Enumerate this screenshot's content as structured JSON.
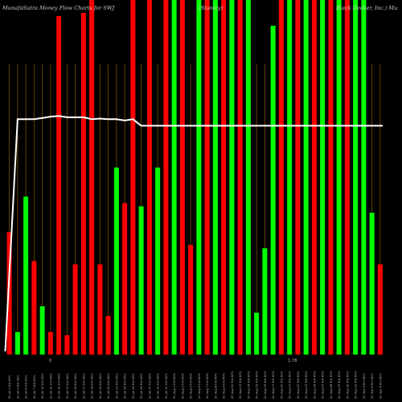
{
  "chart_data": {
    "type": "bar",
    "title": "MunafaSutra  Money Flow  Charts for SWJ",
    "title_right": "(Stanley)",
    "title_far_right": "Black  Decker,  Inc.) Mu",
    "categories": [
      "20 Jul 2 Kid 40%",
      "20 Jul 3 Kid 38%",
      "20 Jul 5 Kid 40%",
      "20 Jul 7 Kid 40%",
      "20 Jul 10 Kid 40%",
      "20 Jul 11 Kid 40%",
      "20 Jul 12 Kid 40%",
      "20 Jul 13 Kid 40%",
      "20 Jul 16 Kid 40%",
      "20 Jul 17 Kid 40%",
      "20 Jul 18 Kid 40%",
      "20 Jul 19 Kid 40%",
      "20 Jul 20 Kid 40%",
      "20 Jul 23 Kid 40%",
      "20 Jul 24 Kid 40%",
      "20 Jul 25 Kid 40%",
      "20 Jul 26 Kid 40%",
      "20 Jul 27 Kid 40%",
      "20 Jul 30 Kid 40%",
      "20 Jul 31 Kid 40%",
      "20 Aug 1 Kid 40%",
      "20 Aug 2 Kid 40%",
      "20 Aug 3 Kid 40%",
      "20 Aug 6 Kid 40%",
      "20 Aug 7 Kid 40%",
      "20 Aug 8 Kid 40%",
      "20 Aug 9 Kid 40%",
      "20 Aug 10 Kid 40%",
      "20 Aug 13 Kid 40%",
      "20 Aug 14 Kid 40%",
      "20 Aug 15 Kid 40%",
      "20 Aug 16 Kid 40%",
      "20 Aug 17 Kid 40%",
      "20 Aug 20 Kid 40%",
      "20 Aug 21 Kid 40%",
      "20 Aug 22 Kid 40%",
      "20 Aug 23 Kid 40%",
      "20 Aug 24 Kid 40%",
      "20 Aug 27 Kid 40%",
      "20 Aug 28 Kid 40%",
      "20 Aug 29 Kid 40%",
      "20 Aug 30 Kid 40%",
      "20 Aug 31 Kid 40%",
      "20 Sep 4 Kid 40%",
      "20 Sep 5 Kid 40%",
      "20 Sep 6 Kid 40%"
    ],
    "values": [
      38,
      7,
      49,
      29,
      15,
      7,
      105,
      6,
      28,
      106,
      110,
      28,
      12,
      58,
      47,
      110,
      46,
      110,
      58,
      110,
      110,
      110,
      34,
      110,
      110,
      110,
      110,
      110,
      110,
      110,
      13,
      33,
      102,
      110,
      110,
      110,
      110,
      110,
      110,
      110,
      110,
      110,
      110,
      110,
      44,
      28
    ],
    "colors": [
      "red",
      "green",
      "green",
      "red",
      "green",
      "red",
      "red",
      "red",
      "red",
      "red",
      "red",
      "red",
      "red",
      "green",
      "red",
      "red",
      "green",
      "red",
      "green",
      "red",
      "green",
      "red",
      "red",
      "green",
      "red",
      "green",
      "red",
      "green",
      "red",
      "green",
      "green",
      "green",
      "green",
      "red",
      "green",
      "red",
      "green",
      "red",
      "green",
      "red",
      "green",
      "red",
      "green",
      "green",
      "green",
      "red"
    ],
    "line": [
      1,
      73,
      73,
      73,
      73.4,
      73.8,
      74,
      73.6,
      73.6,
      73.6,
      73,
      73.2,
      73,
      73,
      72.6,
      73,
      71,
      71,
      71,
      71,
      71,
      71,
      71,
      71,
      71,
      71,
      71,
      71,
      71,
      71,
      71,
      71,
      71,
      71,
      71,
      71,
      71,
      71,
      71,
      71,
      71,
      71,
      71,
      71,
      71,
      71
    ],
    "ylim": [
      0,
      110
    ],
    "xlabel": "",
    "ylabel": "",
    "markers": [
      {
        "index": 5,
        "text": "0"
      },
      {
        "index": 34,
        "text": "1.78"
      }
    ],
    "grid": "vertical",
    "background": "#000000",
    "bar_colors": {
      "green": "#00ff00",
      "red": "#ff0000"
    },
    "grid_color": "#8a5a00",
    "line_color": "#ffffff"
  }
}
